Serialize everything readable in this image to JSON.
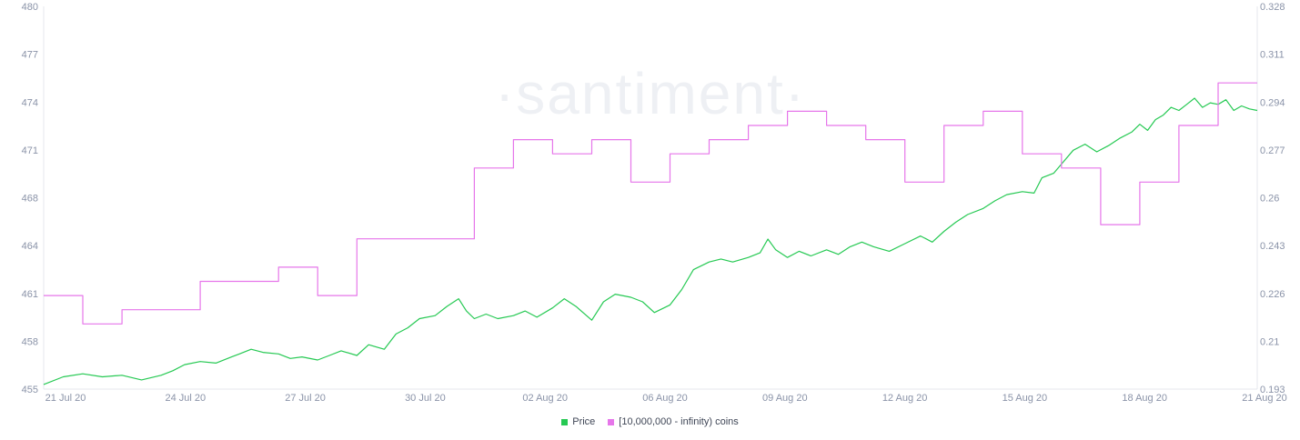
{
  "chart_data": {
    "type": "line",
    "watermark": "·santiment·",
    "x_ticks": [
      "21 Jul 20",
      "24 Jul 20",
      "27 Jul 20",
      "30 Jul 20",
      "02 Aug 20",
      "06 Aug 20",
      "09 Aug 20",
      "12 Aug 20",
      "15 Aug 20",
      "18 Aug 20",
      "21 Aug 20"
    ],
    "y_left": {
      "ticks": [
        "480",
        "477",
        "474",
        "471",
        "468",
        "464",
        "461",
        "458",
        "455"
      ],
      "range": [
        455,
        480
      ]
    },
    "y_right": {
      "ticks": [
        "0.328",
        "0.311",
        "0.294",
        "0.277",
        "0.26",
        "0.243",
        "0.226",
        "0.21",
        "0.193"
      ],
      "range": [
        0.193,
        0.328
      ]
    },
    "x_range_days": [
      0,
      31
    ],
    "series": [
      {
        "name": "Price",
        "axis": "left",
        "color": "#26c953",
        "points": [
          [
            0.0,
            455.3
          ],
          [
            0.5,
            455.8
          ],
          [
            1.0,
            456.0
          ],
          [
            1.5,
            455.8
          ],
          [
            2.0,
            455.9
          ],
          [
            2.5,
            455.6
          ],
          [
            3.0,
            455.9
          ],
          [
            3.3,
            456.2
          ],
          [
            3.6,
            456.6
          ],
          [
            4.0,
            456.8
          ],
          [
            4.4,
            456.7
          ],
          [
            4.8,
            457.1
          ],
          [
            5.0,
            457.3
          ],
          [
            5.3,
            457.6
          ],
          [
            5.6,
            457.4
          ],
          [
            6.0,
            457.3
          ],
          [
            6.3,
            457.0
          ],
          [
            6.6,
            457.1
          ],
          [
            7.0,
            456.9
          ],
          [
            7.3,
            457.2
          ],
          [
            7.6,
            457.5
          ],
          [
            8.0,
            457.2
          ],
          [
            8.3,
            457.9
          ],
          [
            8.7,
            457.6
          ],
          [
            9.0,
            458.6
          ],
          [
            9.3,
            459.0
          ],
          [
            9.6,
            459.6
          ],
          [
            10.0,
            459.8
          ],
          [
            10.3,
            460.4
          ],
          [
            10.6,
            460.9
          ],
          [
            10.8,
            460.1
          ],
          [
            11.0,
            459.6
          ],
          [
            11.3,
            459.9
          ],
          [
            11.6,
            459.6
          ],
          [
            12.0,
            459.8
          ],
          [
            12.3,
            460.1
          ],
          [
            12.6,
            459.7
          ],
          [
            13.0,
            460.3
          ],
          [
            13.3,
            460.9
          ],
          [
            13.6,
            460.4
          ],
          [
            14.0,
            459.5
          ],
          [
            14.3,
            460.7
          ],
          [
            14.6,
            461.2
          ],
          [
            15.0,
            461.0
          ],
          [
            15.3,
            460.7
          ],
          [
            15.6,
            460.0
          ],
          [
            16.0,
            460.5
          ],
          [
            16.3,
            461.5
          ],
          [
            16.6,
            462.8
          ],
          [
            17.0,
            463.3
          ],
          [
            17.3,
            463.5
          ],
          [
            17.6,
            463.3
          ],
          [
            18.0,
            463.6
          ],
          [
            18.3,
            463.9
          ],
          [
            18.5,
            464.8
          ],
          [
            18.7,
            464.1
          ],
          [
            19.0,
            463.6
          ],
          [
            19.3,
            464.0
          ],
          [
            19.6,
            463.7
          ],
          [
            20.0,
            464.1
          ],
          [
            20.3,
            463.8
          ],
          [
            20.6,
            464.3
          ],
          [
            20.9,
            464.6
          ],
          [
            21.2,
            464.3
          ],
          [
            21.6,
            464.0
          ],
          [
            22.0,
            464.5
          ],
          [
            22.4,
            465.0
          ],
          [
            22.7,
            464.6
          ],
          [
            23.0,
            465.3
          ],
          [
            23.3,
            465.9
          ],
          [
            23.6,
            466.4
          ],
          [
            24.0,
            466.8
          ],
          [
            24.3,
            467.3
          ],
          [
            24.6,
            467.7
          ],
          [
            25.0,
            467.9
          ],
          [
            25.3,
            467.8
          ],
          [
            25.5,
            468.8
          ],
          [
            25.8,
            469.1
          ],
          [
            26.0,
            469.7
          ],
          [
            26.3,
            470.6
          ],
          [
            26.6,
            471.0
          ],
          [
            26.9,
            470.5
          ],
          [
            27.2,
            470.9
          ],
          [
            27.5,
            471.4
          ],
          [
            27.8,
            471.8
          ],
          [
            28.0,
            472.3
          ],
          [
            28.2,
            471.9
          ],
          [
            28.4,
            472.6
          ],
          [
            28.6,
            472.9
          ],
          [
            28.8,
            473.4
          ],
          [
            29.0,
            473.2
          ],
          [
            29.2,
            473.6
          ],
          [
            29.4,
            474.0
          ],
          [
            29.6,
            473.4
          ],
          [
            29.8,
            473.7
          ],
          [
            30.0,
            473.6
          ],
          [
            30.2,
            473.9
          ],
          [
            30.4,
            473.2
          ],
          [
            30.6,
            473.5
          ],
          [
            30.8,
            473.3
          ],
          [
            31.0,
            473.2
          ]
        ]
      },
      {
        "name": "[10,000,000 - infinity) coins",
        "axis": "right",
        "color": "#e676ea",
        "points": [
          [
            0.0,
            0.226
          ],
          [
            1.0,
            0.226
          ],
          [
            1.0,
            0.216
          ],
          [
            2.0,
            0.216
          ],
          [
            2.0,
            0.221
          ],
          [
            4.0,
            0.221
          ],
          [
            4.0,
            0.231
          ],
          [
            6.0,
            0.231
          ],
          [
            6.0,
            0.236
          ],
          [
            7.0,
            0.236
          ],
          [
            7.0,
            0.226
          ],
          [
            8.0,
            0.226
          ],
          [
            8.0,
            0.246
          ],
          [
            11.0,
            0.246
          ],
          [
            11.0,
            0.271
          ],
          [
            12.0,
            0.271
          ],
          [
            12.0,
            0.281
          ],
          [
            13.0,
            0.281
          ],
          [
            13.0,
            0.276
          ],
          [
            14.0,
            0.276
          ],
          [
            14.0,
            0.281
          ],
          [
            15.0,
            0.281
          ],
          [
            15.0,
            0.266
          ],
          [
            16.0,
            0.266
          ],
          [
            16.0,
            0.276
          ],
          [
            17.0,
            0.276
          ],
          [
            17.0,
            0.281
          ],
          [
            18.0,
            0.281
          ],
          [
            18.0,
            0.286
          ],
          [
            19.0,
            0.286
          ],
          [
            19.0,
            0.291
          ],
          [
            20.0,
            0.291
          ],
          [
            20.0,
            0.286
          ],
          [
            21.0,
            0.286
          ],
          [
            21.0,
            0.281
          ],
          [
            22.0,
            0.281
          ],
          [
            22.0,
            0.266
          ],
          [
            23.0,
            0.266
          ],
          [
            23.0,
            0.286
          ],
          [
            24.0,
            0.286
          ],
          [
            24.0,
            0.291
          ],
          [
            25.0,
            0.291
          ],
          [
            25.0,
            0.276
          ],
          [
            26.0,
            0.276
          ],
          [
            26.0,
            0.271
          ],
          [
            27.0,
            0.271
          ],
          [
            27.0,
            0.251
          ],
          [
            28.0,
            0.251
          ],
          [
            28.0,
            0.266
          ],
          [
            29.0,
            0.266
          ],
          [
            29.0,
            0.286
          ],
          [
            30.0,
            0.286
          ],
          [
            30.0,
            0.301
          ],
          [
            31.0,
            0.301
          ]
        ]
      }
    ],
    "legend": [
      {
        "label": "Price",
        "color": "#26c953"
      },
      {
        "label": "[10,000,000 - infinity) coins",
        "color": "#e676ea"
      }
    ],
    "grid": false,
    "legend_position": "bottom-center"
  }
}
